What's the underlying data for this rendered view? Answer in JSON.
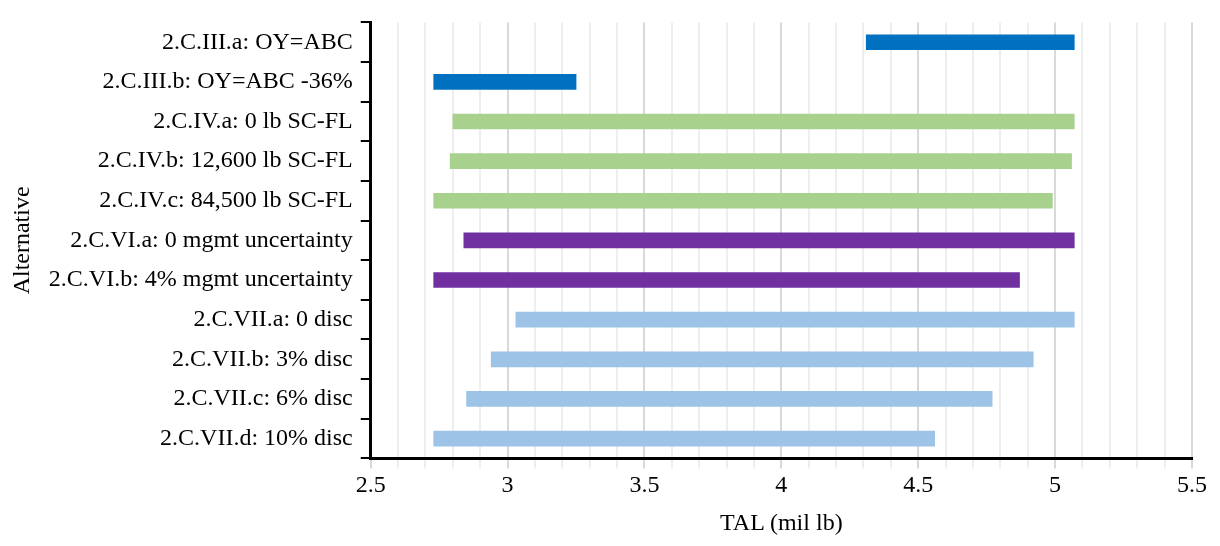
{
  "chart_data": {
    "type": "bar",
    "orientation": "horizontal",
    "xlabel": "TAL (mil lb)",
    "ylabel": "Alternative",
    "categories": [
      "2.C.III.a: OY=ABC",
      "2.C.III.b: OY=ABC -36%",
      "2.C.IV.a: 0 lb SC-FL",
      "2.C.IV.b: 12,600 lb SC-FL",
      "2.C.IV.c: 84,500 lb SC-FL",
      "2.C.VI.a: 0 mgmt uncertainty",
      "2.C.VI.b: 4% mgmt uncertainty",
      "2.C.VII.a: 0 disc",
      "2.C.VII.b: 3% disc",
      "2.C.VII.c: 6% disc",
      "2.C.VII.d: 10% disc"
    ],
    "base": [
      4.31,
      2.73,
      2.8,
      2.79,
      2.73,
      2.84,
      2.73,
      3.03,
      2.94,
      2.85,
      2.73
    ],
    "values": [
      0.76,
      0.52,
      2.27,
      2.27,
      2.26,
      2.23,
      2.14,
      2.04,
      1.98,
      1.92,
      1.83
    ],
    "colors": [
      "#0070c0",
      "#0070c0",
      "#a9d18e",
      "#a9d18e",
      "#a9d18e",
      "#7030a0",
      "#7030a0",
      "#9dc3e6",
      "#9dc3e6",
      "#9dc3e6",
      "#9dc3e6"
    ],
    "xlim": [
      2.5,
      5.5
    ],
    "xticks": [
      2.5,
      {
        "value": 2.6,
        "label": null
      },
      {
        "value": 2.7,
        "label": null
      },
      {
        "value": 2.8,
        "label": null
      },
      {
        "value": 2.9,
        "label": null
      },
      3,
      {
        "value": 3.1,
        "label": null
      },
      {
        "value": 3.2,
        "label": null
      },
      {
        "value": 3.3,
        "label": null
      },
      {
        "value": 3.4,
        "label": null
      },
      3.5,
      {
        "value": 3.6,
        "label": null
      },
      {
        "value": 3.7,
        "label": null
      },
      {
        "value": 3.8,
        "label": null
      },
      {
        "value": 3.9,
        "label": null
      },
      4,
      {
        "value": 4.1,
        "label": null
      },
      {
        "value": 4.2,
        "label": null
      },
      {
        "value": 4.3,
        "label": null
      },
      {
        "value": 4.4,
        "label": null
      },
      4.5,
      {
        "value": 4.6,
        "label": null
      },
      {
        "value": 4.7,
        "label": null
      },
      {
        "value": 4.8,
        "label": null
      },
      {
        "value": 4.9,
        "label": null
      },
      5,
      {
        "value": 5.1,
        "label": null
      },
      {
        "value": 5.2,
        "label": null
      },
      {
        "value": 5.3,
        "label": null
      },
      {
        "value": 5.4,
        "label": null
      },
      5.5
    ],
    "grid": "x",
    "legend": false
  }
}
